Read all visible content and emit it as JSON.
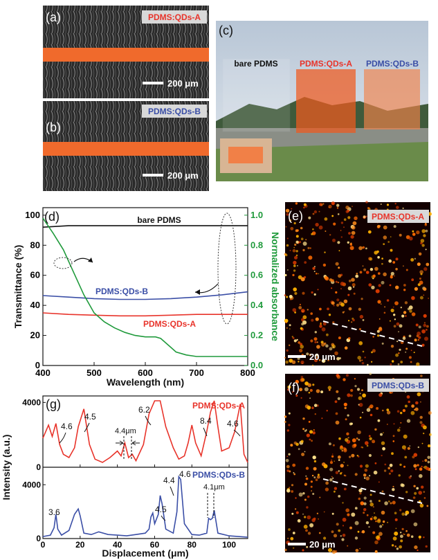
{
  "panels": {
    "a": {
      "letter": "(a)",
      "tag": "PDMS:QDs-A",
      "scale": "200 μm"
    },
    "b": {
      "letter": "(b)",
      "tag": "PDMS:QDs-B",
      "scale": "200 μm"
    },
    "c": {
      "letter": "(c)",
      "labels": [
        "bare PDMS",
        "PDMS:QDs-A",
        "PDMS:QDs-B"
      ]
    },
    "e": {
      "letter": "(e)",
      "tag": "PDMS:QDs-A",
      "scale": "20 μm"
    },
    "f": {
      "letter": "(f)",
      "tag": "PDMS:QDs-B",
      "scale": "20 μm"
    }
  },
  "colors": {
    "red": "#e8332a",
    "blue": "#3a4ea6",
    "green": "#1f9a3b",
    "black": "#111111",
    "orange_band": "#f06a2c"
  },
  "chart_data": [
    {
      "id": "d",
      "panel_letter": "(d)",
      "type": "line",
      "xlabel": "Wavelength (nm)",
      "ylabel": "Transmittance (%)",
      "y2label": "Normalized absorbance",
      "xlim": [
        400,
        800
      ],
      "ylim": [
        0,
        105
      ],
      "y2lim": [
        0,
        1.05
      ],
      "xticks": [
        400,
        500,
        600,
        700,
        800
      ],
      "yticks": [
        0,
        20,
        40,
        60,
        80,
        100
      ],
      "y2ticks": [
        0.0,
        0.2,
        0.4,
        0.6,
        0.8,
        1.0
      ],
      "series": [
        {
          "name": "bare PDMS",
          "axis": "left",
          "color": "#111111",
          "x": [
            400,
            450,
            500,
            550,
            600,
            650,
            700,
            750,
            800
          ],
          "y": [
            92,
            93,
            93,
            93,
            93,
            93,
            93,
            93,
            93
          ]
        },
        {
          "name": "PDMS:QDs-B",
          "axis": "left",
          "color": "#3a4ea6",
          "x": [
            400,
            450,
            500,
            550,
            600,
            650,
            700,
            750,
            800
          ],
          "y": [
            46.5,
            45.5,
            44.5,
            44,
            44,
            44.5,
            45.5,
            47,
            49
          ]
        },
        {
          "name": "PDMS:QDs-A",
          "axis": "left",
          "color": "#e8332a",
          "x": [
            400,
            450,
            500,
            550,
            600,
            650,
            700,
            750,
            800
          ],
          "y": [
            35,
            34,
            33.5,
            33,
            33,
            33.5,
            34,
            34,
            34
          ]
        },
        {
          "name": "",
          "axis": "right",
          "color": "#1f9a3b",
          "x": [
            400,
            420,
            440,
            460,
            480,
            500,
            520,
            540,
            560,
            580,
            600,
            610,
            620,
            630,
            640,
            650,
            660,
            680,
            700,
            750,
            800
          ],
          "y": [
            0.98,
            0.88,
            0.77,
            0.62,
            0.47,
            0.35,
            0.29,
            0.25,
            0.22,
            0.2,
            0.19,
            0.19,
            0.19,
            0.18,
            0.15,
            0.12,
            0.09,
            0.07,
            0.06,
            0.06,
            0.06
          ]
        }
      ]
    },
    {
      "id": "g",
      "panel_letter": "(g)",
      "type": "line",
      "xlabel": "Displacement (μm)",
      "ylabel": "Intensity (a.u.)",
      "xlim": [
        0,
        110
      ],
      "xticks": [
        0,
        20,
        40,
        60,
        80,
        100
      ],
      "subplots": [
        {
          "name": "PDMS:QDs-A",
          "color": "#e8332a",
          "ylim": [
            0,
            4400
          ],
          "yticks": [
            0,
            4000
          ],
          "x": [
            0,
            3,
            5,
            7,
            9,
            11,
            14,
            17,
            19,
            22,
            25,
            28,
            32,
            36,
            40,
            42,
            44,
            46,
            48,
            50,
            54,
            57,
            60,
            63,
            66,
            70,
            73,
            76,
            78,
            80,
            82,
            85,
            88,
            90,
            92,
            94,
            96,
            100,
            103,
            106,
            108,
            110
          ],
          "y": [
            1800,
            2600,
            1900,
            2700,
            1400,
            800,
            600,
            1200,
            2500,
            3600,
            1400,
            500,
            300,
            600,
            1000,
            700,
            1500,
            600,
            800,
            400,
            1400,
            3300,
            4100,
            4100,
            2500,
            1200,
            500,
            700,
            1500,
            2600,
            1500,
            700,
            2200,
            3400,
            4100,
            2500,
            1000,
            1200,
            2200,
            3900,
            800,
            300
          ],
          "annotations": [
            "4.6",
            "4.5",
            "4.4μm",
            "6.2",
            "8.4",
            "4.6"
          ]
        },
        {
          "name": "PDMS:QDs-B",
          "color": "#3a4ea6",
          "ylim": [
            0,
            5300
          ],
          "yticks": [
            0,
            4000
          ],
          "x": [
            0,
            4,
            6,
            7,
            8,
            10,
            14,
            17,
            19,
            20,
            22,
            26,
            30,
            35,
            40,
            45,
            50,
            55,
            57,
            58,
            59,
            60,
            62,
            63,
            64,
            66,
            70,
            72,
            73,
            74,
            76,
            80,
            84,
            88,
            89,
            90,
            91,
            92,
            94,
            100,
            105,
            110
          ],
          "y": [
            150,
            250,
            800,
            1800,
            700,
            250,
            600,
            1800,
            2200,
            1700,
            400,
            300,
            500,
            300,
            250,
            200,
            300,
            400,
            700,
            1600,
            1900,
            1100,
            1800,
            3200,
            2600,
            700,
            400,
            2000,
            4600,
            4400,
            1100,
            300,
            250,
            400,
            1500,
            1400,
            1500,
            2100,
            400,
            200,
            150,
            100
          ],
          "annotations": [
            "3.6",
            "4.5",
            "4.4",
            "4.6",
            "4.1μm"
          ]
        }
      ]
    }
  ]
}
